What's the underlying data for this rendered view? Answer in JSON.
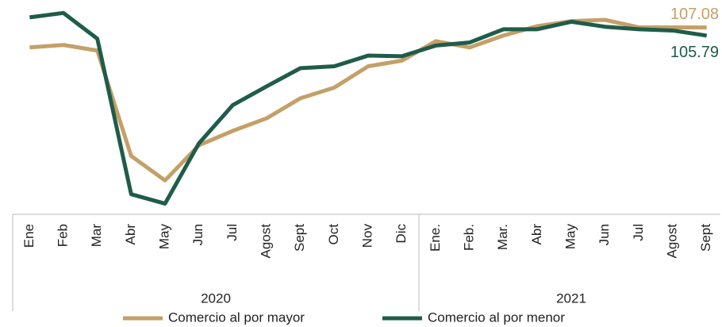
{
  "chart_data": {
    "type": "line",
    "category_groups": [
      {
        "name": "2020",
        "categories": [
          "Ene",
          "Feb",
          "Mar",
          "Abr",
          "May",
          "Jun",
          "Jul",
          "Agost",
          "Sept",
          "Oct",
          "Nov",
          "Dic"
        ]
      },
      {
        "name": "2021",
        "categories": [
          "Ene.",
          "Feb.",
          "Mar.",
          "Abr",
          "May",
          "Jun",
          "Jul",
          "Agost",
          "Sept"
        ]
      }
    ],
    "series": [
      {
        "name": "Comercio al por mayor",
        "color": "#c4a068",
        "values": [
          103.9,
          104.3,
          103.4,
          86.6,
          82.7,
          88.3,
          90.6,
          92.6,
          95.8,
          97.5,
          100.9,
          101.8,
          104.9,
          103.9,
          105.8,
          107.3,
          108.1,
          108.3,
          107.1,
          107.1,
          107.08
        ]
      },
      {
        "name": "Comercio al por menor",
        "color": "#1f5c4a",
        "values": [
          108.7,
          109.4,
          105.3,
          80.5,
          79.0,
          88.6,
          94.7,
          97.7,
          100.6,
          100.9,
          102.6,
          102.5,
          104.2,
          104.7,
          106.8,
          106.8,
          108.0,
          107.2,
          106.8,
          106.6,
          105.79
        ]
      }
    ],
    "ylim": [
      77.3,
      110.2
    ]
  }
}
